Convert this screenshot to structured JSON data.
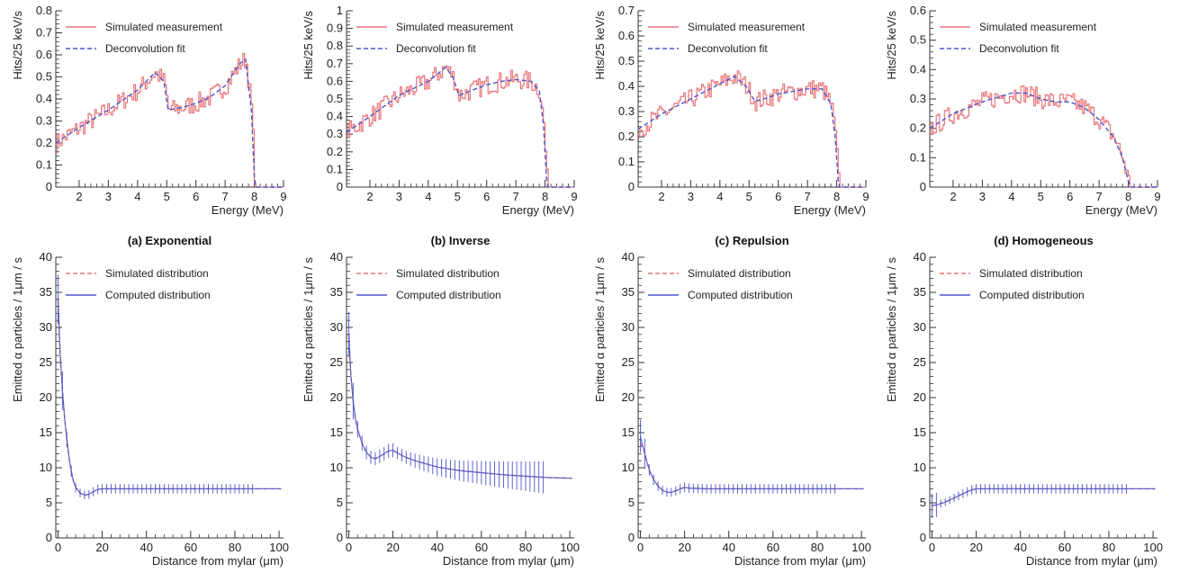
{
  "colors": {
    "measured": "#e8767b",
    "fit": "#4b55c9",
    "axis": "#333333"
  },
  "captions": [
    "(a) Exponential",
    "(b) Inverse",
    "(c) Repulsion",
    "(d) Homogeneous"
  ],
  "chart_data": [
    {
      "type": "line",
      "row": "top",
      "xlabel": "Energy (MeV)",
      "ylabel": "Hits/25 keV/s",
      "xlim": [
        1.2,
        9
      ],
      "ylim": [
        0,
        0.8
      ],
      "xticks": [
        2,
        3,
        4,
        5,
        6,
        7,
        8,
        9
      ],
      "yticks": [
        0,
        0.1,
        0.2,
        0.3,
        0.4,
        0.5,
        0.6,
        0.7,
        0.8
      ],
      "series": [
        {
          "name": "Simulated measurement",
          "style": "noisy",
          "x": [
            1.2,
            2,
            3,
            4,
            4.6,
            4.9,
            5.05,
            5.5,
            6,
            6.5,
            7,
            7.5,
            7.7,
            7.9,
            8.0,
            8.05,
            9
          ],
          "y": [
            0.2,
            0.27,
            0.35,
            0.44,
            0.52,
            0.48,
            0.35,
            0.36,
            0.38,
            0.41,
            0.46,
            0.56,
            0.58,
            0.35,
            0.05,
            0,
            0
          ]
        },
        {
          "name": "Deconvolution fit",
          "style": "dashed",
          "x": [
            1.2,
            2,
            3,
            4,
            4.6,
            4.9,
            5.05,
            5.5,
            6,
            6.5,
            7,
            7.5,
            7.7,
            7.9,
            8.0,
            8.05,
            9
          ],
          "y": [
            0.2,
            0.27,
            0.35,
            0.44,
            0.52,
            0.48,
            0.35,
            0.36,
            0.38,
            0.41,
            0.46,
            0.56,
            0.58,
            0.35,
            0.05,
            0,
            0
          ]
        }
      ]
    },
    {
      "type": "line",
      "row": "top",
      "xlabel": "Energy (MeV)",
      "ylabel": "Hits/25 keV/s",
      "xlim": [
        1.2,
        9
      ],
      "ylim": [
        0,
        1
      ],
      "xticks": [
        2,
        3,
        4,
        5,
        6,
        7,
        8,
        9
      ],
      "yticks": [
        0,
        0.1,
        0.2,
        0.3,
        0.4,
        0.5,
        0.6,
        0.7,
        0.8,
        0.9,
        1
      ],
      "series": [
        {
          "name": "Simulated measurement",
          "style": "noisy",
          "x": [
            1.2,
            2,
            3,
            4,
            4.6,
            4.85,
            5.05,
            5.5,
            6,
            6.5,
            7,
            7.5,
            7.8,
            7.95,
            8.05,
            8.1,
            9
          ],
          "y": [
            0.31,
            0.4,
            0.52,
            0.6,
            0.68,
            0.62,
            0.52,
            0.55,
            0.58,
            0.6,
            0.61,
            0.6,
            0.55,
            0.35,
            0.05,
            0,
            0
          ]
        },
        {
          "name": "Deconvolution fit",
          "style": "dashed",
          "x": [
            1.2,
            2,
            3,
            4,
            4.6,
            4.85,
            5.05,
            5.5,
            6,
            6.5,
            7,
            7.5,
            7.8,
            7.95,
            8.05,
            8.1,
            9
          ],
          "y": [
            0.31,
            0.4,
            0.52,
            0.6,
            0.68,
            0.62,
            0.52,
            0.55,
            0.58,
            0.6,
            0.61,
            0.6,
            0.55,
            0.35,
            0.05,
            0,
            0
          ]
        }
      ]
    },
    {
      "type": "line",
      "row": "top",
      "xlabel": "Energy (MeV)",
      "ylabel": "Hits/25 keV/s",
      "xlim": [
        1.2,
        9
      ],
      "ylim": [
        0,
        0.7
      ],
      "xticks": [
        2,
        3,
        4,
        5,
        6,
        7,
        8,
        9
      ],
      "yticks": [
        0,
        0.1,
        0.2,
        0.3,
        0.4,
        0.5,
        0.6,
        0.7
      ],
      "series": [
        {
          "name": "Simulated measurement",
          "style": "noisy",
          "x": [
            1.2,
            2,
            3,
            4,
            4.5,
            4.9,
            5.2,
            5.5,
            6,
            6.5,
            7,
            7.5,
            7.8,
            7.95,
            8.05,
            8.1,
            9
          ],
          "y": [
            0.23,
            0.29,
            0.35,
            0.41,
            0.44,
            0.4,
            0.34,
            0.35,
            0.37,
            0.38,
            0.39,
            0.39,
            0.33,
            0.2,
            0.03,
            0,
            0
          ]
        },
        {
          "name": "Deconvolution fit",
          "style": "dashed",
          "x": [
            1.2,
            2,
            3,
            4,
            4.5,
            4.9,
            5.2,
            5.5,
            6,
            6.5,
            7,
            7.5,
            7.8,
            7.95,
            8.05,
            8.1,
            9
          ],
          "y": [
            0.23,
            0.29,
            0.35,
            0.41,
            0.44,
            0.4,
            0.34,
            0.35,
            0.37,
            0.38,
            0.39,
            0.39,
            0.33,
            0.2,
            0.03,
            0,
            0
          ]
        }
      ]
    },
    {
      "type": "line",
      "row": "top",
      "xlabel": "Energy (MeV)",
      "ylabel": "Hits/25 keV/s",
      "xlim": [
        1.2,
        9
      ],
      "ylim": [
        0,
        0.6
      ],
      "xticks": [
        2,
        3,
        4,
        5,
        6,
        7,
        8,
        9
      ],
      "yticks": [
        0,
        0.1,
        0.2,
        0.3,
        0.4,
        0.5,
        0.6
      ],
      "series": [
        {
          "name": "Simulated measurement",
          "style": "noisy",
          "x": [
            1.2,
            2,
            3,
            4,
            4.5,
            5,
            5.5,
            6,
            6.5,
            7,
            7.5,
            7.8,
            8.0,
            8.1,
            9
          ],
          "y": [
            0.2,
            0.25,
            0.29,
            0.32,
            0.32,
            0.3,
            0.29,
            0.29,
            0.27,
            0.23,
            0.17,
            0.1,
            0.02,
            0,
            0
          ]
        },
        {
          "name": "Deconvolution fit",
          "style": "dashed",
          "x": [
            1.2,
            2,
            3,
            4,
            4.5,
            5,
            5.5,
            6,
            6.5,
            7,
            7.5,
            7.8,
            8.0,
            8.1,
            9
          ],
          "y": [
            0.2,
            0.25,
            0.29,
            0.32,
            0.32,
            0.3,
            0.29,
            0.29,
            0.27,
            0.23,
            0.17,
            0.1,
            0.02,
            0,
            0
          ]
        }
      ]
    },
    {
      "type": "line",
      "row": "bottom",
      "xlabel": "Distance from mylar (μm)",
      "ylabel": "Emitted α particles / 1μm / s",
      "xlim": [
        -1,
        102
      ],
      "ylim": [
        0,
        40
      ],
      "xticks": [
        0,
        20,
        40,
        60,
        80,
        100
      ],
      "yticks": [
        0,
        5,
        10,
        15,
        20,
        25,
        30,
        35,
        40
      ],
      "series": [
        {
          "name": "Simulated distribution",
          "style": "dashed",
          "x": [
            0,
            1,
            2,
            3,
            4,
            5,
            6,
            7,
            8,
            10,
            12,
            14,
            16,
            18,
            20,
            22,
            30,
            40,
            60,
            80,
            90,
            101
          ],
          "y": [
            34,
            26,
            21,
            17,
            14,
            11.5,
            9.5,
            8,
            7.2,
            6.4,
            6.1,
            6.2,
            6.6,
            6.9,
            7,
            7,
            7,
            7,
            7,
            7,
            7,
            7
          ]
        },
        {
          "name": "Computed distribution",
          "style": "errorbars",
          "x": [
            0,
            1,
            2,
            3,
            4,
            5,
            6,
            7,
            8,
            10,
            12,
            14,
            16,
            18,
            20,
            22,
            30,
            40,
            60,
            80,
            90,
            101
          ],
          "y": [
            34,
            26,
            21,
            17,
            14,
            11.5,
            9.5,
            8,
            7.2,
            6.4,
            6.1,
            6.2,
            6.6,
            6.9,
            7,
            7,
            7,
            7,
            7,
            7,
            7,
            7
          ]
        }
      ]
    },
    {
      "type": "line",
      "row": "bottom",
      "xlabel": "Distance from mylar (μm)",
      "ylabel": "Emitted α particles / 1μm / s",
      "xlim": [
        -1,
        102
      ],
      "ylim": [
        0,
        40
      ],
      "xticks": [
        0,
        20,
        40,
        60,
        80,
        100
      ],
      "yticks": [
        0,
        5,
        10,
        15,
        20,
        25,
        30,
        35,
        40
      ],
      "series": [
        {
          "name": "Simulated distribution",
          "style": "dashed",
          "x": [
            0,
            1,
            2,
            3,
            4,
            6,
            8,
            10,
            12,
            14,
            16,
            18,
            20,
            22,
            25,
            30,
            40,
            50,
            60,
            70,
            80,
            90,
            101
          ],
          "y": [
            29,
            23,
            19.5,
            17,
            15.5,
            13.5,
            12.2,
            11.5,
            11.3,
            11.6,
            12,
            12.4,
            12.5,
            12.1,
            11.6,
            11,
            10.1,
            9.6,
            9.3,
            9,
            8.8,
            8.6,
            8.5
          ]
        },
        {
          "name": "Computed distribution",
          "style": "errorbars",
          "x": [
            0,
            1,
            2,
            3,
            4,
            6,
            8,
            10,
            12,
            14,
            16,
            18,
            20,
            22,
            25,
            30,
            40,
            50,
            60,
            70,
            80,
            90,
            101
          ],
          "y": [
            29,
            23,
            19.5,
            17,
            15.5,
            13.5,
            12.2,
            11.5,
            11.3,
            11.6,
            12,
            12.4,
            12.5,
            12.1,
            11.6,
            11,
            10.1,
            9.6,
            9.3,
            9,
            8.8,
            8.6,
            8.5
          ]
        }
      ]
    },
    {
      "type": "line",
      "row": "bottom",
      "xlabel": "Distance from mylar (μm)",
      "ylabel": "Emitted α particles / 1μm / s",
      "xlim": [
        -1,
        102
      ],
      "ylim": [
        0,
        40
      ],
      "xticks": [
        0,
        20,
        40,
        60,
        80,
        100
      ],
      "yticks": [
        0,
        5,
        10,
        15,
        20,
        25,
        30,
        35,
        40
      ],
      "series": [
        {
          "name": "Simulated distribution",
          "style": "dashed",
          "x": [
            0,
            1,
            2,
            3,
            4,
            6,
            8,
            10,
            12,
            14,
            16,
            18,
            20,
            22,
            30,
            40,
            60,
            80,
            90,
            101
          ],
          "y": [
            13.5,
            13,
            12,
            10.8,
            9.7,
            8.3,
            7.4,
            6.8,
            6.5,
            6.5,
            6.7,
            7,
            7.2,
            7.1,
            7,
            7,
            7,
            7,
            7,
            7
          ]
        },
        {
          "name": "Computed distribution",
          "style": "errorbars",
          "x": [
            0,
            1,
            2,
            3,
            4,
            6,
            8,
            10,
            12,
            14,
            16,
            18,
            20,
            22,
            30,
            40,
            60,
            80,
            90,
            101
          ],
          "y": [
            14.5,
            13.2,
            12,
            10.8,
            9.7,
            8.3,
            7.4,
            6.8,
            6.5,
            6.5,
            6.7,
            7,
            7.2,
            7.1,
            7,
            7,
            7,
            7,
            7,
            7
          ]
        }
      ]
    },
    {
      "type": "line",
      "row": "bottom",
      "xlabel": "Distance from mylar (μm)",
      "ylabel": "Emitted α particles / 1μm / s",
      "xlim": [
        -1,
        102
      ],
      "ylim": [
        0,
        40
      ],
      "xticks": [
        0,
        20,
        40,
        60,
        80,
        100
      ],
      "yticks": [
        0,
        5,
        10,
        15,
        20,
        25,
        30,
        35,
        40
      ],
      "series": [
        {
          "name": "Simulated distribution",
          "style": "dashed",
          "x": [
            0,
            2,
            4,
            6,
            8,
            10,
            12,
            14,
            16,
            18,
            20,
            22,
            30,
            40,
            60,
            80,
            90,
            101
          ],
          "y": [
            4.6,
            4.7,
            4.9,
            5.1,
            5.4,
            5.7,
            6,
            6.3,
            6.6,
            6.85,
            7,
            7,
            7,
            7,
            7,
            7,
            7,
            7
          ]
        },
        {
          "name": "Computed distribution",
          "style": "errorbars",
          "x": [
            0,
            2,
            4,
            6,
            8,
            10,
            12,
            14,
            16,
            18,
            20,
            22,
            30,
            40,
            60,
            80,
            90,
            101
          ],
          "y": [
            4.6,
            4.7,
            4.9,
            5.1,
            5.4,
            5.7,
            6,
            6.3,
            6.6,
            6.85,
            7,
            7,
            7,
            7,
            7,
            7,
            7,
            7
          ]
        }
      ]
    }
  ]
}
